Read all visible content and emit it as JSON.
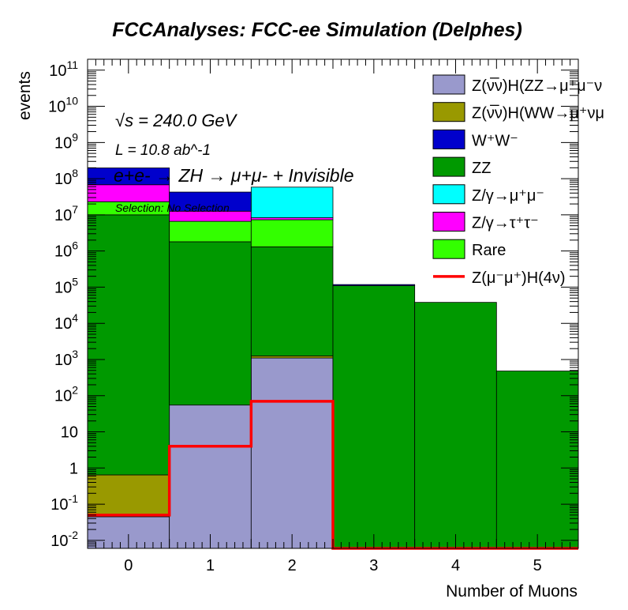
{
  "chart_data": {
    "type": "bar",
    "stacked": true,
    "title": "FCCAnalyses: FCC-ee Simulation (Delphes)",
    "xlabel": "Number of Muons",
    "ylabel": "events",
    "x_bin_edges": [
      -0.5,
      0.5,
      1.5,
      2.5,
      3.5,
      4.5,
      5.5
    ],
    "x_tick_labels": [
      "0",
      "1",
      "2",
      "3",
      "4",
      "5"
    ],
    "xlim": [
      -0.5,
      5.5
    ],
    "ylim": [
      0.006,
      200000000000
    ],
    "yscale": "log",
    "y_tick_labels": [
      "10^-2",
      "10^-1",
      "1",
      "10",
      "10^2",
      "10^3",
      "10^4",
      "10^5",
      "10^6",
      "10^7",
      "10^8",
      "10^9",
      "10^10",
      "10^11"
    ],
    "grid": false,
    "legend_position": "top-right",
    "annotations": {
      "energy": "√s = 240.0 GeV",
      "lumi": "L = 10.8 ab^-1",
      "process": "e+e- → ZH → μ+μ- + Invisible",
      "selection": "Selection: No Selection"
    },
    "stack_order_bottom_to_top": [
      "Z(νν̄)H(ZZ→μ+μ-νν̄)",
      "Z(νν̄)H(WW→μ+νμ-ν̄)",
      "ZZ",
      "Rare",
      "Z/γ→τ+τ-",
      "Z/γ→μ+μ-",
      "W+W-"
    ],
    "series": [
      {
        "name": "Z(νν̄)H(ZZ→μ+μ-ν",
        "legend_label": "Z(ν̅ν)H(ZZ→μ⁺μ⁻ν",
        "color": "#9999cc",
        "values": [
          0.045,
          55,
          1100,
          0,
          0,
          0
        ]
      },
      {
        "name": "Z(νν̄)H(WW→μ+νμ",
        "legend_label": "Z(ν̅ν)H(WW→μ⁺νμ",
        "color": "#999900",
        "values": [
          0.6,
          0,
          150,
          0,
          0,
          0
        ]
      },
      {
        "name": "W+W-",
        "legend_label": "W⁺W⁻",
        "color": "#0000cc",
        "values": [
          130000000,
          30000000,
          0,
          8000,
          0,
          0
        ]
      },
      {
        "name": "ZZ",
        "legend_label": "ZZ",
        "color": "#009900",
        "values": [
          10000000,
          1800000,
          1300000,
          110000,
          38000,
          480
        ]
      },
      {
        "name": "Z/γ→μ+μ-",
        "legend_label": "Z/γ→μ⁺μ⁻",
        "color": "#00ffff",
        "values": [
          0,
          0,
          50000000,
          0,
          0,
          0
        ]
      },
      {
        "name": "Z/γ→τ+τ-",
        "legend_label": "Z/γ→τ⁺τ⁻",
        "color": "#ff00ff",
        "values": [
          45000000,
          6000000,
          1000000,
          0,
          0,
          0
        ]
      },
      {
        "name": "Rare",
        "legend_label": "Rare",
        "color": "#33ff00",
        "values": [
          13000000,
          4800000,
          6000000,
          0,
          0,
          0
        ]
      }
    ],
    "overlay": [
      {
        "name": "Z(μ-μ+)H(4ν)",
        "legend_label": "Z(μ⁻μ⁺)H(4ν)",
        "color": "#ff0000",
        "values": [
          0.05,
          4,
          70,
          0,
          0,
          0
        ]
      }
    ]
  }
}
